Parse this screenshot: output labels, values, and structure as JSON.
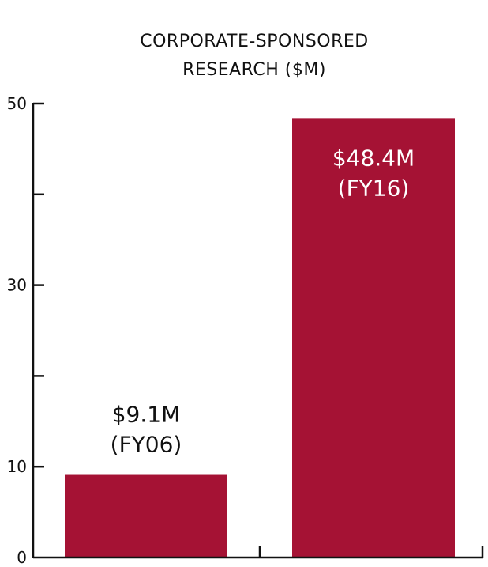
{
  "chart_data": {
    "type": "bar",
    "title_lines": [
      "CORPORATE-SPONSORED",
      "RESEARCH ($M)"
    ],
    "categories": [
      "FY06",
      "FY16"
    ],
    "values": [
      9.1,
      48.4
    ],
    "data_labels": [
      {
        "line1": "$9.1M",
        "line2": "(FY06)",
        "placement": "above"
      },
      {
        "line1": "$48.4M",
        "line2": "(FY16)",
        "placement": "inside"
      }
    ],
    "ylim": [
      0,
      50
    ],
    "y_ticks": [
      0,
      10,
      20,
      30,
      40,
      50
    ],
    "y_tick_labels": [
      "0",
      "10",
      "",
      "30",
      "",
      "50"
    ],
    "grid": false,
    "xlabel": "",
    "ylabel": "",
    "colors": {
      "bar": "#A51234",
      "axis": "#111111",
      "label_outside": "#111111",
      "label_inside": "#ffffff"
    }
  }
}
